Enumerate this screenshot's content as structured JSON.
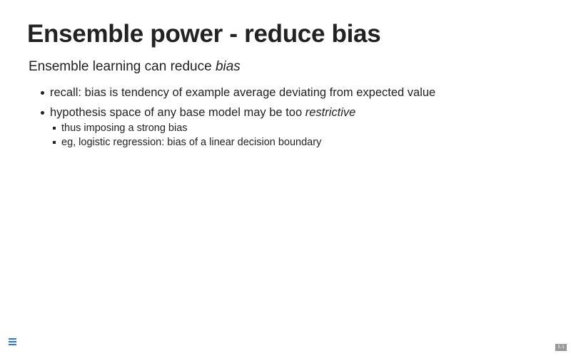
{
  "slide": {
    "title": "Ensemble power - reduce bias",
    "lead": {
      "text": "Ensemble learning can reduce ",
      "emphasis": "bias"
    },
    "bullets": [
      {
        "text": "recall: bias is tendency of example average deviating from expected value"
      },
      {
        "text": "hypothesis space of any base model may be too ",
        "emphasis": "restrictive",
        "sub_bullets": [
          "thus imposing a strong bias",
          "eg, logistic regression: bias of a linear decision boundary"
        ]
      }
    ]
  },
  "controls": {
    "menu_icon": "hamburger-menu-icon",
    "accent_color": "#2a76dd"
  },
  "footer": {
    "slide_number": "5.1"
  }
}
